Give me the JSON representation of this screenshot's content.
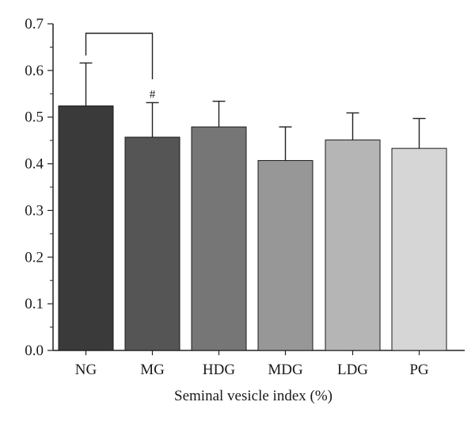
{
  "chart_data": {
    "type": "bar",
    "title": "",
    "xlabel": "Seminal vesicle index (%)",
    "ylabel": "",
    "categories": [
      "NG",
      "MG",
      "HDG",
      "MDG",
      "LDG",
      "PG"
    ],
    "values": [
      0.524,
      0.457,
      0.479,
      0.407,
      0.451,
      0.433
    ],
    "error_upper": [
      0.092,
      0.074,
      0.055,
      0.072,
      0.058,
      0.064
    ],
    "bar_colors": [
      "#3a3a3a",
      "#555555",
      "#767676",
      "#979797",
      "#b5b5b5",
      "#d6d6d6"
    ],
    "ylim": [
      0,
      0.7
    ],
    "yticks": [
      "0.0",
      "0.1",
      "0.2",
      "0.3",
      "0.4",
      "0.5",
      "0.6",
      "0.7"
    ],
    "grid": false,
    "significance": {
      "from": "NG",
      "to": "MG",
      "marker": "#",
      "marker_on": "MG"
    }
  }
}
